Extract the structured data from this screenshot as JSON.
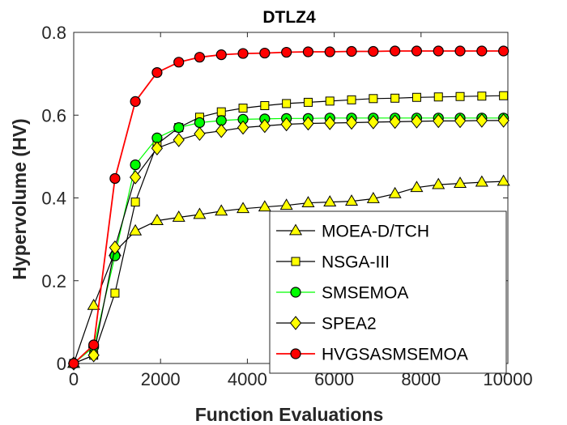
{
  "chart_data": {
    "type": "line",
    "title": "DTLZ4",
    "xlabel": "Function Evaluations",
    "ylabel": "Hypervolume (HV)",
    "xlim": [
      0,
      10000
    ],
    "ylim": [
      0,
      0.8
    ],
    "xticks": [
      0,
      2000,
      4000,
      6000,
      8000,
      10000
    ],
    "xtick_labels": [
      "0",
      "2000",
      "4000",
      "6000",
      "8000",
      "10000"
    ],
    "yticks": [
      0,
      0.2,
      0.4,
      0.6,
      0.8
    ],
    "ytick_labels": [
      "0",
      "0.2",
      "0.4",
      "0.6",
      "0.8"
    ],
    "grid": false,
    "legend_position": "bottom-right",
    "x": [
      0,
      460,
      950,
      1420,
      1920,
      2420,
      2900,
      3400,
      3900,
      4400,
      4900,
      5400,
      5900,
      6400,
      6900,
      7400,
      7900,
      8400,
      8900,
      9400,
      9900
    ],
    "series": [
      {
        "name": "MOEA-D/TCH",
        "marker": "triangle",
        "color": "#000000",
        "marker_fill": "#ffff00",
        "values": [
          0.0,
          0.14,
          0.27,
          0.32,
          0.345,
          0.353,
          0.36,
          0.368,
          0.374,
          0.378,
          0.382,
          0.388,
          0.39,
          0.392,
          0.398,
          0.41,
          0.425,
          0.432,
          0.435,
          0.438,
          0.44
        ]
      },
      {
        "name": "NSGA-III",
        "marker": "square",
        "color": "#000000",
        "marker_fill": "#ffff00",
        "values": [
          0.0,
          0.02,
          0.17,
          0.39,
          0.53,
          0.57,
          0.595,
          0.608,
          0.617,
          0.623,
          0.628,
          0.631,
          0.634,
          0.637,
          0.64,
          0.641,
          0.643,
          0.644,
          0.645,
          0.646,
          0.647
        ]
      },
      {
        "name": "SMSEMOA",
        "marker": "circle",
        "color": "#00ff00",
        "marker_fill": "#00ff00",
        "values": [
          0.0,
          0.04,
          0.26,
          0.48,
          0.545,
          0.57,
          0.582,
          0.587,
          0.59,
          0.591,
          0.592,
          0.592,
          0.593,
          0.593,
          0.593,
          0.593,
          0.593,
          0.593,
          0.593,
          0.593,
          0.593
        ]
      },
      {
        "name": "SPEA2",
        "marker": "diamond",
        "color": "#000000",
        "marker_fill": "#ffff00",
        "values": [
          0.0,
          0.02,
          0.28,
          0.45,
          0.52,
          0.54,
          0.555,
          0.562,
          0.57,
          0.574,
          0.578,
          0.58,
          0.581,
          0.582,
          0.583,
          0.584,
          0.585,
          0.586,
          0.586,
          0.587,
          0.587
        ]
      },
      {
        "name": "HVGSASMSEMOA",
        "marker": "circle",
        "color": "#ff0000",
        "marker_fill": "#ff0000",
        "marker_edge": "#000000",
        "values": [
          0.0,
          0.045,
          0.447,
          0.633,
          0.703,
          0.728,
          0.74,
          0.746,
          0.749,
          0.75,
          0.752,
          0.753,
          0.753,
          0.754,
          0.754,
          0.755,
          0.755,
          0.755,
          0.755,
          0.755,
          0.755
        ]
      }
    ]
  }
}
